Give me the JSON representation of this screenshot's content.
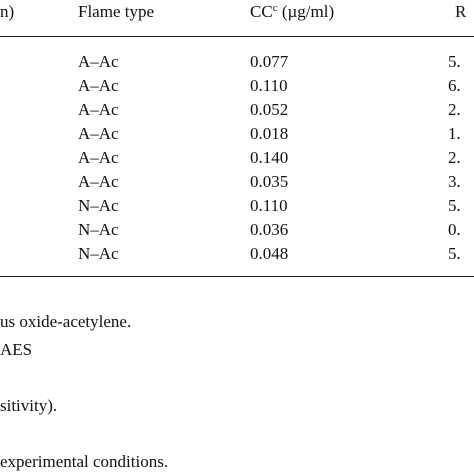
{
  "table": {
    "header": {
      "col0": "n)",
      "col1": "Flame type",
      "col2": {
        "text": "CC",
        "sup": "c",
        "rest": " (µg/ml)"
      },
      "col3": "R"
    },
    "rows": [
      [
        "A–Ac",
        "0.077",
        "5."
      ],
      [
        "A–Ac",
        "0.110",
        "6."
      ],
      [
        "A–Ac",
        "0.052",
        "2."
      ],
      [
        "A–Ac",
        "0.018",
        "1."
      ],
      [
        "A–Ac",
        "0.140",
        "2."
      ],
      [
        "A–Ac",
        "0.035",
        "3."
      ],
      [
        "N–Ac",
        "0.110",
        "5."
      ],
      [
        "N–Ac",
        "0.036",
        "0."
      ],
      [
        "N–Ac",
        "0.048",
        "5."
      ]
    ]
  },
  "footnotes": [
    "us oxide-acetylene.",
    "AES",
    "sitivity).",
    "experimental conditions."
  ]
}
